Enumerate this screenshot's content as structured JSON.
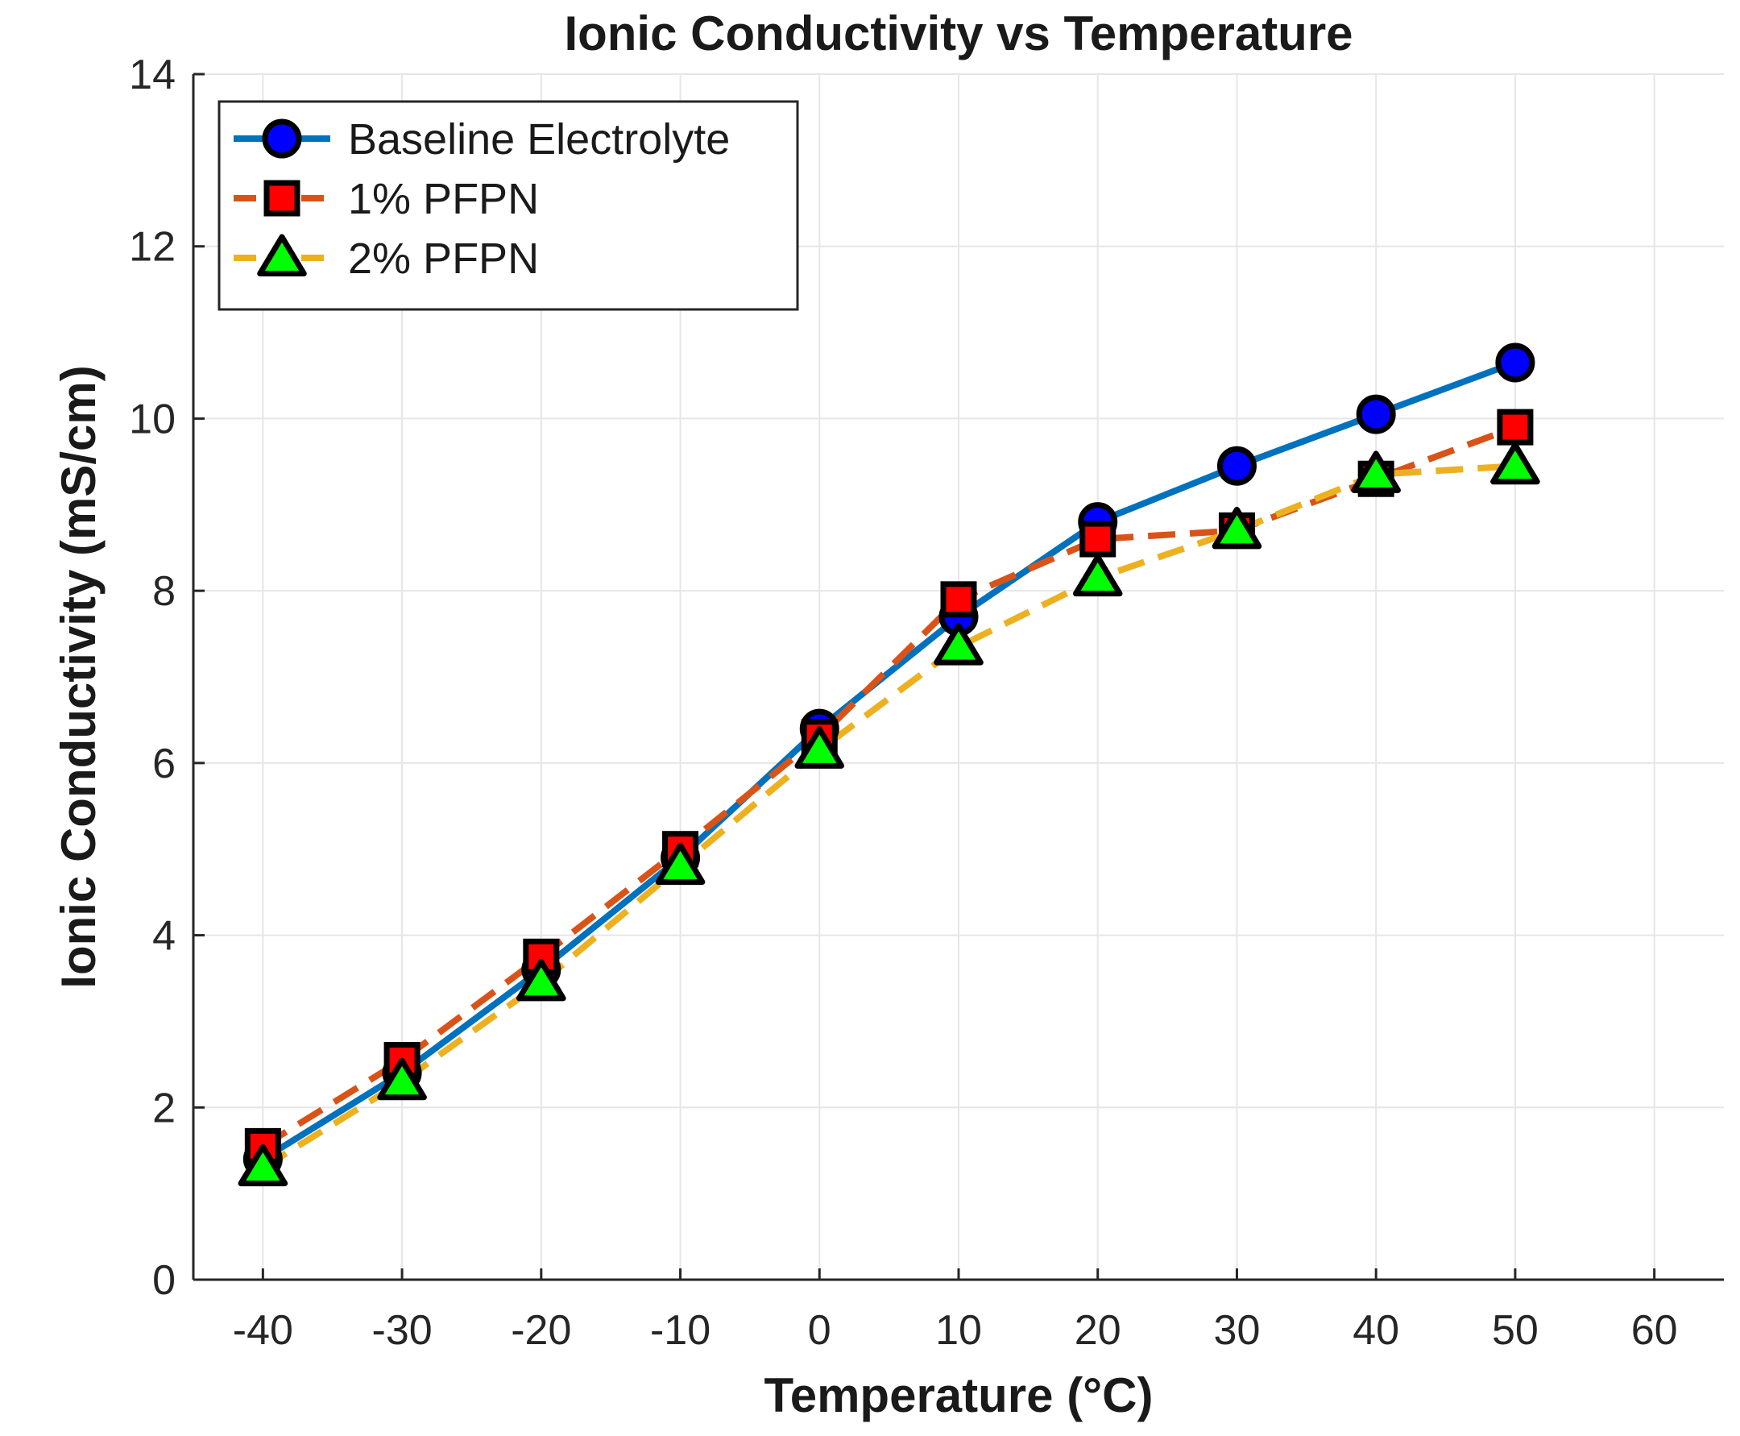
{
  "chart_data": {
    "type": "line",
    "title": "Ionic Conductivity vs Temperature",
    "xlabel": "Temperature (°C)",
    "ylabel": "Ionic Conductivity (mS/cm)",
    "xlim": [
      -45,
      65
    ],
    "ylim": [
      0,
      14
    ],
    "xticks": [
      "-40",
      "-30",
      "-20",
      "-10",
      "0",
      "10",
      "20",
      "30",
      "40",
      "50",
      "60"
    ],
    "yticks": [
      "0",
      "2",
      "4",
      "6",
      "8",
      "10",
      "12",
      "14"
    ],
    "grid": true,
    "legend_position": "top-left",
    "x": [
      -40,
      -30,
      -20,
      -10,
      0,
      10,
      20,
      30,
      40,
      50
    ],
    "series": [
      {
        "name": "Baseline Electrolyte",
        "line_color": "#0072BD",
        "marker": "circle",
        "marker_color": "#0000FF",
        "dash": "solid",
        "values": [
          1.4,
          2.4,
          3.6,
          4.9,
          6.4,
          7.7,
          8.8,
          9.45,
          10.05,
          10.65
        ]
      },
      {
        "name": "1% PFPN",
        "line_color": "#D95319",
        "marker": "square",
        "marker_color": "#FF0000",
        "dash": "dashed",
        "values": [
          1.55,
          2.55,
          3.75,
          5.0,
          6.3,
          7.9,
          8.6,
          8.7,
          9.3,
          9.9
        ]
      },
      {
        "name": "2% PFPN",
        "line_color": "#EDB120",
        "marker": "triangle",
        "marker_color": "#00FF00",
        "dash": "dashed",
        "values": [
          1.3,
          2.3,
          3.45,
          4.8,
          6.15,
          7.35,
          8.15,
          8.7,
          9.35,
          9.45
        ]
      }
    ]
  }
}
